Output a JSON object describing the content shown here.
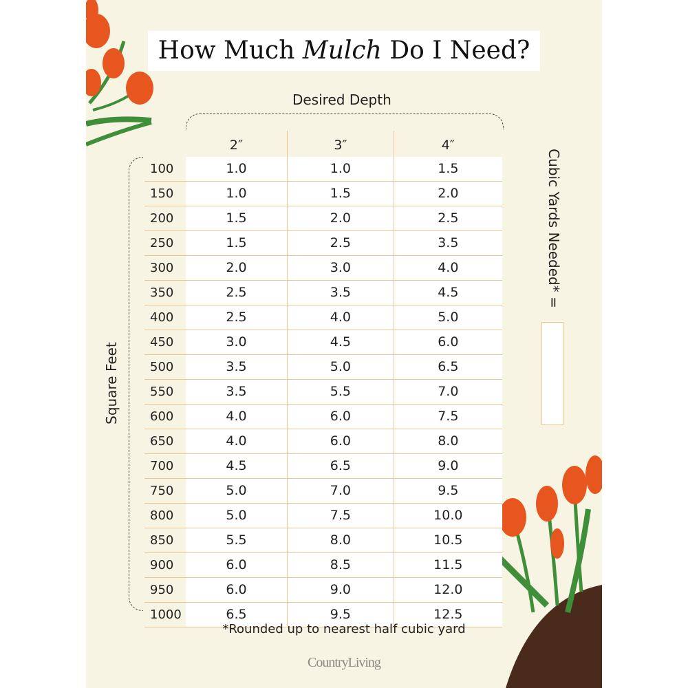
{
  "title": {
    "before": "How Much ",
    "italic": "Mulch",
    "after": " Do I Need?"
  },
  "depth_label": "Desired Depth",
  "square_feet_label": "Square Feet",
  "cubic_yards_label": "Cubic Yards Needed* =",
  "columns": [
    "2″",
    "3″",
    "4″"
  ],
  "rows": [
    {
      "sqft": "100",
      "v": [
        "1.0",
        "1.0",
        "1.5"
      ]
    },
    {
      "sqft": "150",
      "v": [
        "1.0",
        "1.5",
        "2.0"
      ]
    },
    {
      "sqft": "200",
      "v": [
        "1.5",
        "2.0",
        "2.5"
      ]
    },
    {
      "sqft": "250",
      "v": [
        "1.5",
        "2.5",
        "3.5"
      ]
    },
    {
      "sqft": "300",
      "v": [
        "2.0",
        "3.0",
        "4.0"
      ]
    },
    {
      "sqft": "350",
      "v": [
        "2.5",
        "3.5",
        "4.5"
      ]
    },
    {
      "sqft": "400",
      "v": [
        "2.5",
        "4.0",
        "5.0"
      ]
    },
    {
      "sqft": "450",
      "v": [
        "3.0",
        "4.5",
        "6.0"
      ]
    },
    {
      "sqft": "500",
      "v": [
        "3.5",
        "5.0",
        "6.5"
      ]
    },
    {
      "sqft": "550",
      "v": [
        "3.5",
        "5.5",
        "7.0"
      ]
    },
    {
      "sqft": "600",
      "v": [
        "4.0",
        "6.0",
        "7.5"
      ]
    },
    {
      "sqft": "650",
      "v": [
        "4.0",
        "6.0",
        "8.0"
      ]
    },
    {
      "sqft": "700",
      "v": [
        "4.5",
        "6.5",
        "9.0"
      ]
    },
    {
      "sqft": "750",
      "v": [
        "5.0",
        "7.0",
        "9.5"
      ]
    },
    {
      "sqft": "800",
      "v": [
        "5.0",
        "7.5",
        "10.0"
      ]
    },
    {
      "sqft": "850",
      "v": [
        "5.5",
        "8.0",
        "10.5"
      ]
    },
    {
      "sqft": "900",
      "v": [
        "6.0",
        "8.5",
        "11.5"
      ]
    },
    {
      "sqft": "950",
      "v": [
        "6.0",
        "9.0",
        "12.0"
      ]
    },
    {
      "sqft": "1000",
      "v": [
        "6.5",
        "9.5",
        "12.5"
      ]
    }
  ],
  "footnote": "*Rounded up to nearest half cubic yard",
  "logo": "CountryLiving",
  "colors": {
    "background": "#f8f4e3",
    "grid_line": "#f0c48a",
    "tulip": "#e8561f",
    "leaf": "#3f8f3a",
    "soil": "#4a2a1a"
  },
  "icons": [
    "tulip-illustration-top-left",
    "tulip-illustration-bottom-right"
  ]
}
